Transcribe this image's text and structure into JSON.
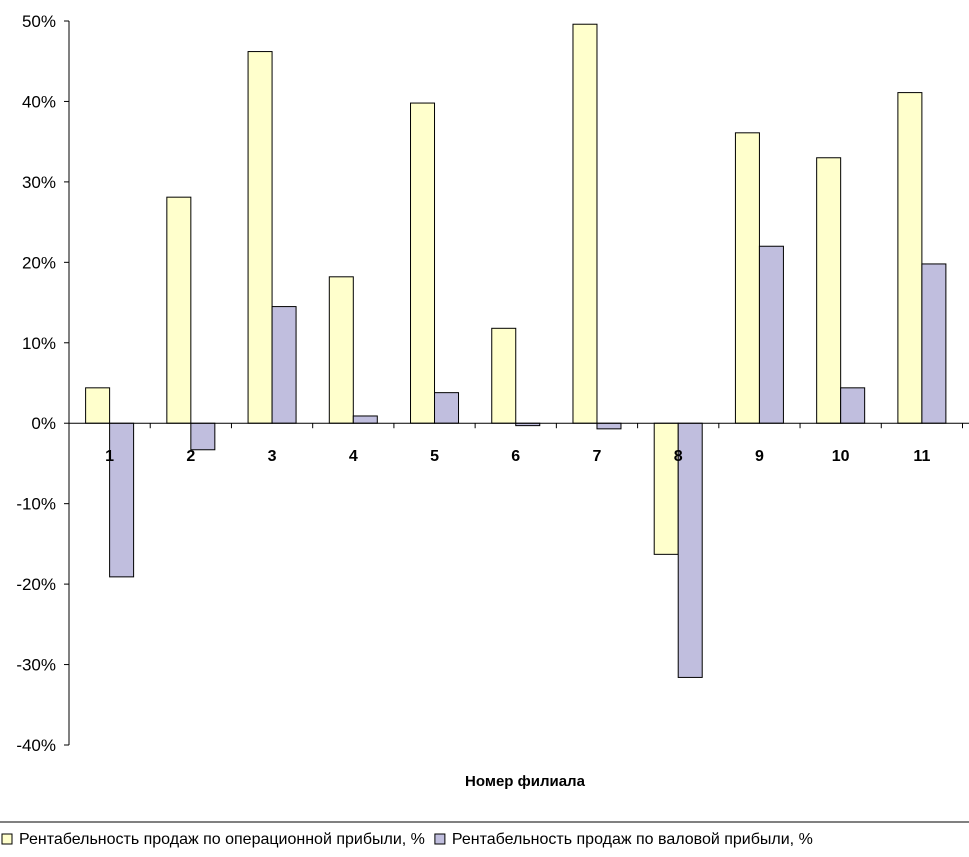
{
  "chart_data": {
    "type": "bar",
    "categories": [
      "1",
      "2",
      "3",
      "4",
      "5",
      "6",
      "7",
      "8",
      "9",
      "10",
      "11"
    ],
    "series": [
      {
        "name": "Рентабельность продаж по операционной прибыли, %",
        "color": "#FFFFCC",
        "values": [
          4.4,
          28.1,
          46.2,
          18.2,
          39.8,
          11.8,
          49.6,
          -16.3,
          36.1,
          33.0,
          41.1
        ]
      },
      {
        "name": "Рентабельность продаж по валовой прибыли, %",
        "color": "#C0BEDE",
        "values": [
          -19.1,
          -3.3,
          14.5,
          0.9,
          3.8,
          -0.3,
          -0.7,
          -31.6,
          22.0,
          4.4,
          19.8
        ]
      }
    ],
    "xlabel": "Номер филиала",
    "ylabel": "",
    "ylim": [
      -40,
      50
    ],
    "yticks": [
      -40,
      -30,
      -20,
      -10,
      0,
      10,
      20,
      30,
      40,
      50
    ],
    "ytick_format": "percent",
    "grid": false,
    "legend_position": "bottom"
  }
}
